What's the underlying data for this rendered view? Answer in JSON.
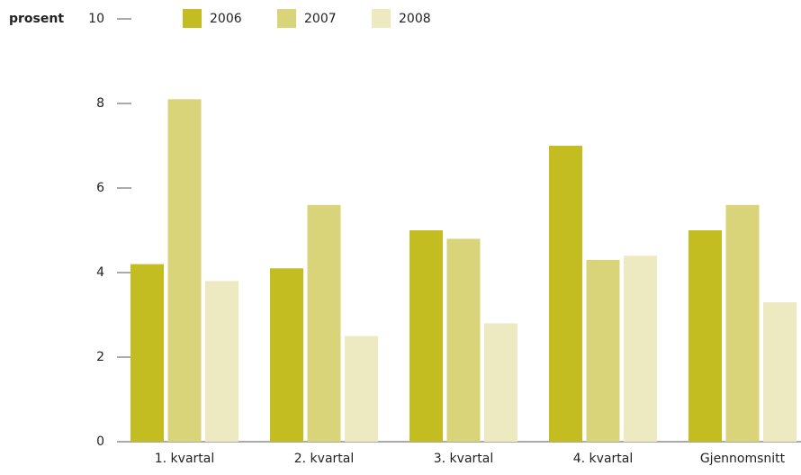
{
  "chart_data": {
    "type": "bar",
    "y_axis_label": "prosent",
    "categories": [
      "1. kvartal",
      "2. kvartal",
      "3. kvartal",
      "4. kvartal",
      "Gjennomsnitt"
    ],
    "series": [
      {
        "name": "2006",
        "color": "#c4bd22",
        "values": [
          4.2,
          4.1,
          5.0,
          7.0,
          5.0
        ]
      },
      {
        "name": "2007",
        "color": "#d9d47a",
        "values": [
          8.1,
          5.6,
          4.8,
          4.3,
          5.6
        ]
      },
      {
        "name": "2008",
        "color": "#ede9c0",
        "values": [
          3.8,
          2.5,
          2.8,
          4.4,
          3.3
        ]
      }
    ],
    "ylim": [
      0,
      10
    ],
    "yticks": [
      0,
      2,
      4,
      6,
      8,
      10
    ],
    "legend": "top"
  }
}
